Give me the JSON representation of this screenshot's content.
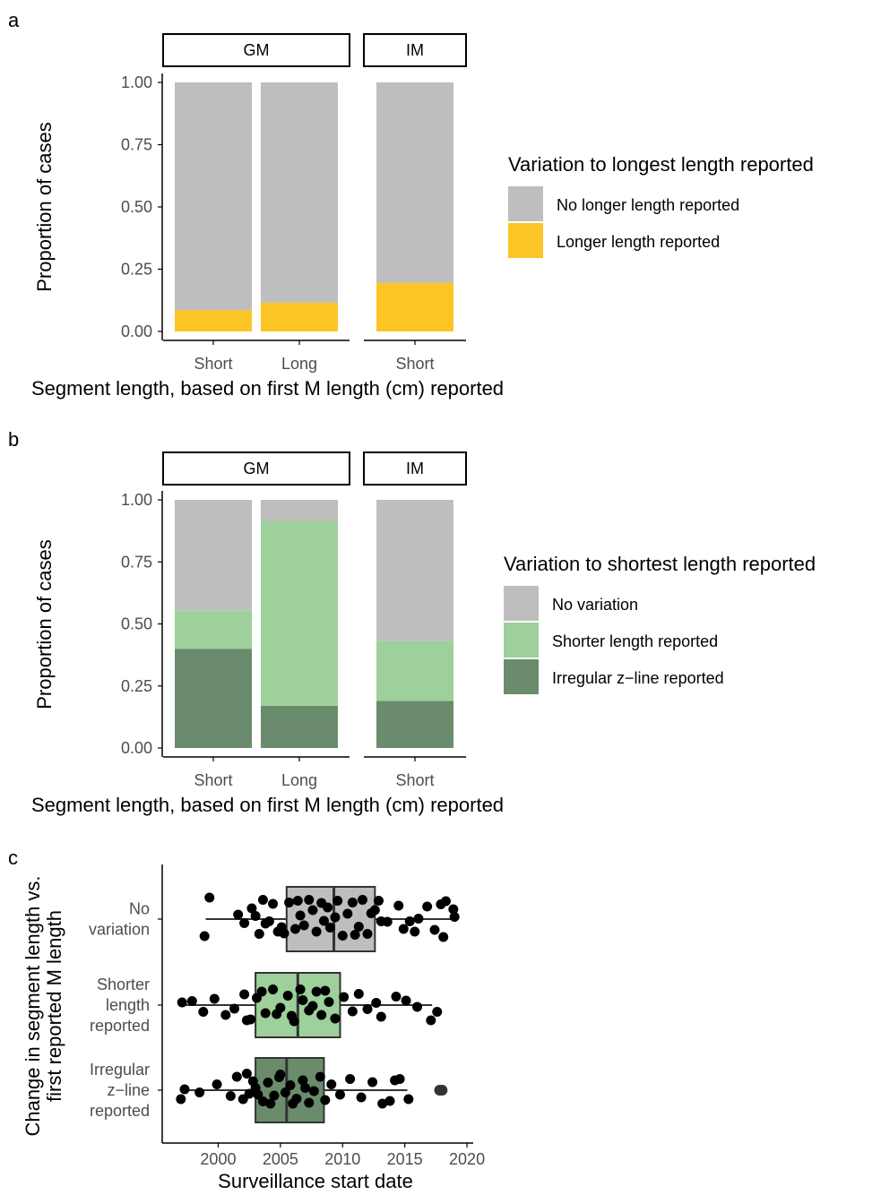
{
  "colors": {
    "grey": "#bebebe",
    "yellow": "#fdc425",
    "light_green": "#9dd09a",
    "dark_green": "#6a8c6c",
    "point": "#000000",
    "axis": "#000000",
    "tick_label": "#4d4d4d"
  },
  "chart_data": [
    {
      "panel": "a",
      "type": "bar",
      "stacked": true,
      "facets": [
        "GM",
        "IM"
      ],
      "categories": [
        {
          "facet": "GM",
          "label": "Short"
        },
        {
          "facet": "GM",
          "label": "Long"
        },
        {
          "facet": "IM",
          "label": "Short"
        }
      ],
      "series": [
        {
          "name": "No longer length reported",
          "color_key": "grey",
          "values": [
            0.915,
            0.885,
            0.805
          ]
        },
        {
          "name": "Longer length reported",
          "color_key": "yellow",
          "values": [
            0.085,
            0.115,
            0.195
          ]
        }
      ],
      "stack_order": [
        "Longer length reported",
        "No longer length reported"
      ],
      "xlabel": "Segment length, based on first M length (cm) reported",
      "ylabel": "Proportion of cases",
      "ylim": [
        0,
        1
      ],
      "yticks": [
        "0.00",
        "0.25",
        "0.50",
        "0.75",
        "1.00"
      ],
      "legend_title": "Variation to longest length reported",
      "legend_position": "right",
      "grid": false
    },
    {
      "panel": "b",
      "type": "bar",
      "stacked": true,
      "facets": [
        "GM",
        "IM"
      ],
      "categories": [
        {
          "facet": "GM",
          "label": "Short"
        },
        {
          "facet": "GM",
          "label": "Long"
        },
        {
          "facet": "IM",
          "label": "Short"
        }
      ],
      "series": [
        {
          "name": "No variation",
          "color_key": "grey",
          "values": [
            0.445,
            0.085,
            0.57
          ]
        },
        {
          "name": "Shorter length reported",
          "color_key": "light_green",
          "values": [
            0.155,
            0.745,
            0.24
          ]
        },
        {
          "name": "Irregular z−line reported",
          "color_key": "dark_green",
          "values": [
            0.4,
            0.17,
            0.19
          ]
        }
      ],
      "stack_order": [
        "Irregular z−line reported",
        "Shorter length reported",
        "No variation"
      ],
      "xlabel": "Segment length, based on first M length (cm) reported",
      "ylabel": "Proportion of cases",
      "ylim": [
        0,
        1
      ],
      "yticks": [
        "0.00",
        "0.25",
        "0.50",
        "0.75",
        "1.00"
      ],
      "legend_title": "Variation to shortest length reported",
      "legend_position": "right",
      "grid": false
    },
    {
      "panel": "c",
      "type": "boxplot",
      "orientation": "horizontal",
      "xlabel": "Surveillance start date",
      "ylabel_lines": [
        "Change in segment length vs.",
        "first reported M length"
      ],
      "xlim": [
        1995.5,
        2020.5
      ],
      "xticks": [
        2000,
        2005,
        2010,
        2015,
        2020
      ],
      "categories": [
        {
          "key": "no_variation",
          "label_lines": [
            "No",
            "variation"
          ],
          "color_key": "grey",
          "box": {
            "min": 1999,
            "q1": 2005.5,
            "median": 2009.3,
            "q3": 2012.6,
            "max": 2019
          },
          "outliers": [],
          "points": [
            [
              1999.3,
              -0.48
            ],
            [
              1998.9,
              0.38
            ],
            [
              2002.7,
              -0.24
            ],
            [
              2003.6,
              -0.43
            ],
            [
              2004.4,
              -0.34
            ],
            [
              2004.8,
              0.28
            ],
            [
              2005.7,
              -0.37
            ],
            [
              2006.4,
              -0.41
            ],
            [
              2007.3,
              -0.43
            ],
            [
              2008.3,
              -0.36
            ],
            [
              2009.6,
              -0.41
            ],
            [
              2010.8,
              -0.37
            ],
            [
              2011.6,
              -0.43
            ],
            [
              2012.9,
              -0.41
            ],
            [
              2014.5,
              -0.3
            ],
            [
              2018.3,
              -0.4
            ],
            [
              2018.9,
              -0.22
            ],
            [
              2002.1,
              0.09
            ],
            [
              2003.3,
              0.33
            ],
            [
              2005.1,
              0.18
            ],
            [
              2006.6,
              -0.08
            ],
            [
              2007.9,
              0.28
            ],
            [
              2009.0,
              0.19
            ],
            [
              2010.4,
              -0.12
            ],
            [
              2011.3,
              0.17
            ],
            [
              2012.3,
              -0.13
            ],
            [
              2013.6,
              0.06
            ],
            [
              2014.9,
              0.22
            ],
            [
              2016.1,
              -0.01
            ],
            [
              2017.4,
              0.24
            ],
            [
              2018.1,
              0.4
            ],
            [
              2001.6,
              -0.1
            ],
            [
              2004.1,
              0.05
            ],
            [
              2006.9,
              0.14
            ],
            [
              2008.8,
              -0.26
            ],
            [
              2010.0,
              0.37
            ],
            [
              2012.0,
              0.33
            ],
            [
              2015.4,
              0.05
            ],
            [
              2016.8,
              -0.28
            ],
            [
              2017.9,
              -0.33
            ],
            [
              2019.0,
              -0.05
            ],
            [
              2003.0,
              -0.07
            ],
            [
              2005.3,
              0.32
            ],
            [
              2007.6,
              -0.2
            ],
            [
              2011.0,
              0.35
            ],
            [
              2013.1,
              0.05
            ],
            [
              2015.8,
              0.28
            ],
            [
              2003.8,
              0.1
            ],
            [
              2008.5,
              0.04
            ],
            [
              2012.6,
              -0.2
            ],
            [
              2009.4,
              -0.04
            ],
            [
              2006.2,
              0.22
            ]
          ]
        },
        {
          "key": "shorter",
          "label_lines": [
            "Shorter",
            "length",
            "reported"
          ],
          "color_key": "light_green",
          "box": {
            "min": 1997.3,
            "q1": 2003.0,
            "median": 2006.4,
            "q3": 2009.8,
            "max": 2017.2
          },
          "outliers": [],
          "points": [
            [
              1997.1,
              -0.06
            ],
            [
              1997.9,
              -0.09
            ],
            [
              1998.8,
              0.15
            ],
            [
              1999.7,
              -0.14
            ],
            [
              2000.6,
              0.22
            ],
            [
              2001.3,
              0.08
            ],
            [
              2002.1,
              -0.24
            ],
            [
              2002.6,
              0.32
            ],
            [
              2003.1,
              -0.16
            ],
            [
              2003.8,
              0.18
            ],
            [
              2004.4,
              -0.35
            ],
            [
              2005.0,
              0.06
            ],
            [
              2005.6,
              -0.21
            ],
            [
              2006.1,
              0.36
            ],
            [
              2006.8,
              -0.11
            ],
            [
              2007.3,
              0.12
            ],
            [
              2007.9,
              -0.3
            ],
            [
              2008.3,
              0.22
            ],
            [
              2008.9,
              -0.07
            ],
            [
              2009.4,
              0.3
            ],
            [
              2010.1,
              -0.18
            ],
            [
              2010.8,
              0.14
            ],
            [
              2011.3,
              -0.25
            ],
            [
              2012.0,
              0.09
            ],
            [
              2012.7,
              -0.05
            ],
            [
              2013.1,
              0.26
            ],
            [
              2014.3,
              -0.19
            ],
            [
              2015.1,
              -0.1
            ],
            [
              2016.0,
              0.04
            ],
            [
              2017.1,
              0.34
            ],
            [
              2017.6,
              0.15
            ],
            [
              2002.3,
              0.34
            ],
            [
              2004.7,
              0.2
            ],
            [
              2005.9,
              0.24
            ],
            [
              2007.6,
              0.02
            ],
            [
              2008.6,
              -0.32
            ],
            [
              2003.5,
              -0.3
            ],
            [
              2006.6,
              -0.35
            ]
          ]
        },
        {
          "key": "irregular",
          "label_lines": [
            "Irregular",
            "z−line",
            "reported"
          ],
          "color_key": "dark_green",
          "box": {
            "min": 1997.0,
            "q1": 2003.0,
            "median": 2005.5,
            "q3": 2008.5,
            "max": 2015.2
          },
          "outliers": [
            2017.8,
            2018.0
          ],
          "points": [
            [
              1997.0,
              0.2
            ],
            [
              1997.3,
              -0.02
            ],
            [
              1998.5,
              0.05
            ],
            [
              1999.9,
              -0.13
            ],
            [
              2001.0,
              0.13
            ],
            [
              2001.5,
              -0.3
            ],
            [
              2002.0,
              0.2
            ],
            [
              2002.5,
              0.08
            ],
            [
              2002.3,
              -0.37
            ],
            [
              2003.0,
              -0.05
            ],
            [
              2003.6,
              0.25
            ],
            [
              2004.0,
              -0.17
            ],
            [
              2004.5,
              0.12
            ],
            [
              2004.9,
              -0.29
            ],
            [
              2005.4,
              0.05
            ],
            [
              2005.8,
              -0.11
            ],
            [
              2006.3,
              0.19
            ],
            [
              2006.8,
              -0.22
            ],
            [
              2007.3,
              0.28
            ],
            [
              2007.7,
              0.02
            ],
            [
              2008.2,
              -0.3
            ],
            [
              2008.6,
              0.22
            ],
            [
              2009.1,
              -0.13
            ],
            [
              2009.8,
              0.1
            ],
            [
              2010.6,
              -0.25
            ],
            [
              2011.5,
              0.16
            ],
            [
              2012.4,
              -0.18
            ],
            [
              2013.2,
              0.3
            ],
            [
              2013.8,
              0.24
            ],
            [
              2014.2,
              -0.22
            ],
            [
              2014.6,
              -0.25
            ],
            [
              2015.3,
              0.2
            ],
            [
              2003.2,
              0.1
            ],
            [
              2005.0,
              -0.35
            ],
            [
              2006.0,
              0.3
            ],
            [
              2007.0,
              -0.05
            ],
            [
              2004.2,
              0.3
            ],
            [
              2002.8,
              -0.2
            ]
          ]
        }
      ]
    }
  ],
  "panel_labels": [
    "a",
    "b",
    "c"
  ]
}
